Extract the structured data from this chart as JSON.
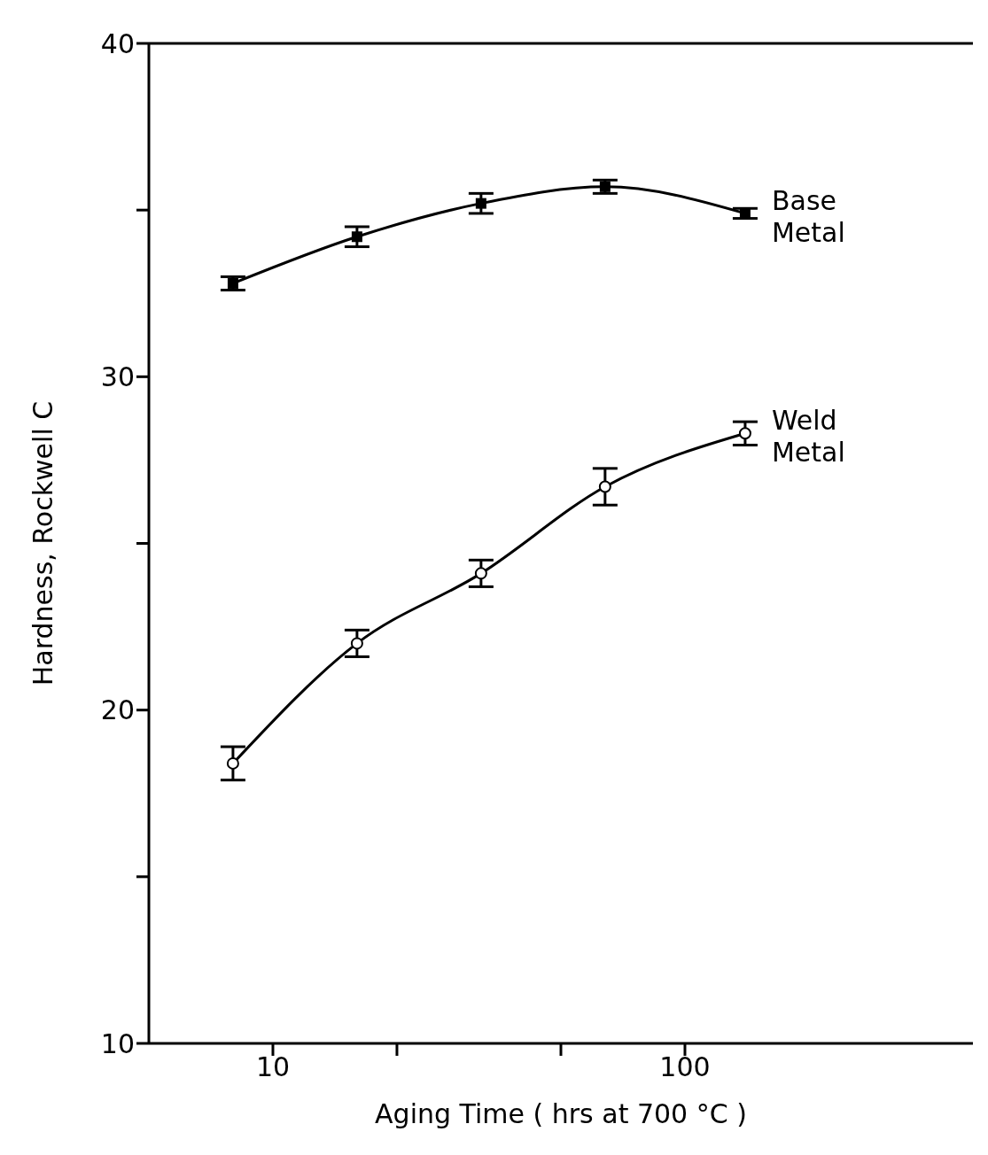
{
  "chart_data": {
    "type": "line",
    "xlabel": "Aging Time ( hrs at 700 °C )",
    "ylabel": "Hardness, Rockwell C",
    "log": "x",
    "x": [
      8,
      16,
      32,
      64,
      140
    ],
    "series": [
      {
        "name": "Base Metal",
        "color": "#000000",
        "marker": "square",
        "values": [
          32.8,
          34.2,
          35.2,
          35.7,
          34.9
        ],
        "errors": [
          0.2,
          0.3,
          0.3,
          0.2,
          0.15
        ]
      },
      {
        "name": "Weld Metal",
        "color": "#000000",
        "marker": "circle",
        "values": [
          18.4,
          22.0,
          24.1,
          26.7,
          28.3
        ],
        "errors": [
          0.5,
          0.4,
          0.4,
          0.55,
          0.35
        ]
      }
    ],
    "xlim": [
      5,
      500
    ],
    "xticks": [
      10,
      {
        "value": 20,
        "label": null
      },
      {
        "value": 50,
        "label": null
      },
      100
    ],
    "ylim": [
      10,
      40
    ],
    "yticks": [
      10,
      {
        "value": 15,
        "label": null
      },
      20,
      {
        "value": 25,
        "label": null
      },
      30,
      {
        "value": 35,
        "label": null
      },
      40
    ],
    "grid": false,
    "legend": false,
    "line_style": "solid"
  }
}
